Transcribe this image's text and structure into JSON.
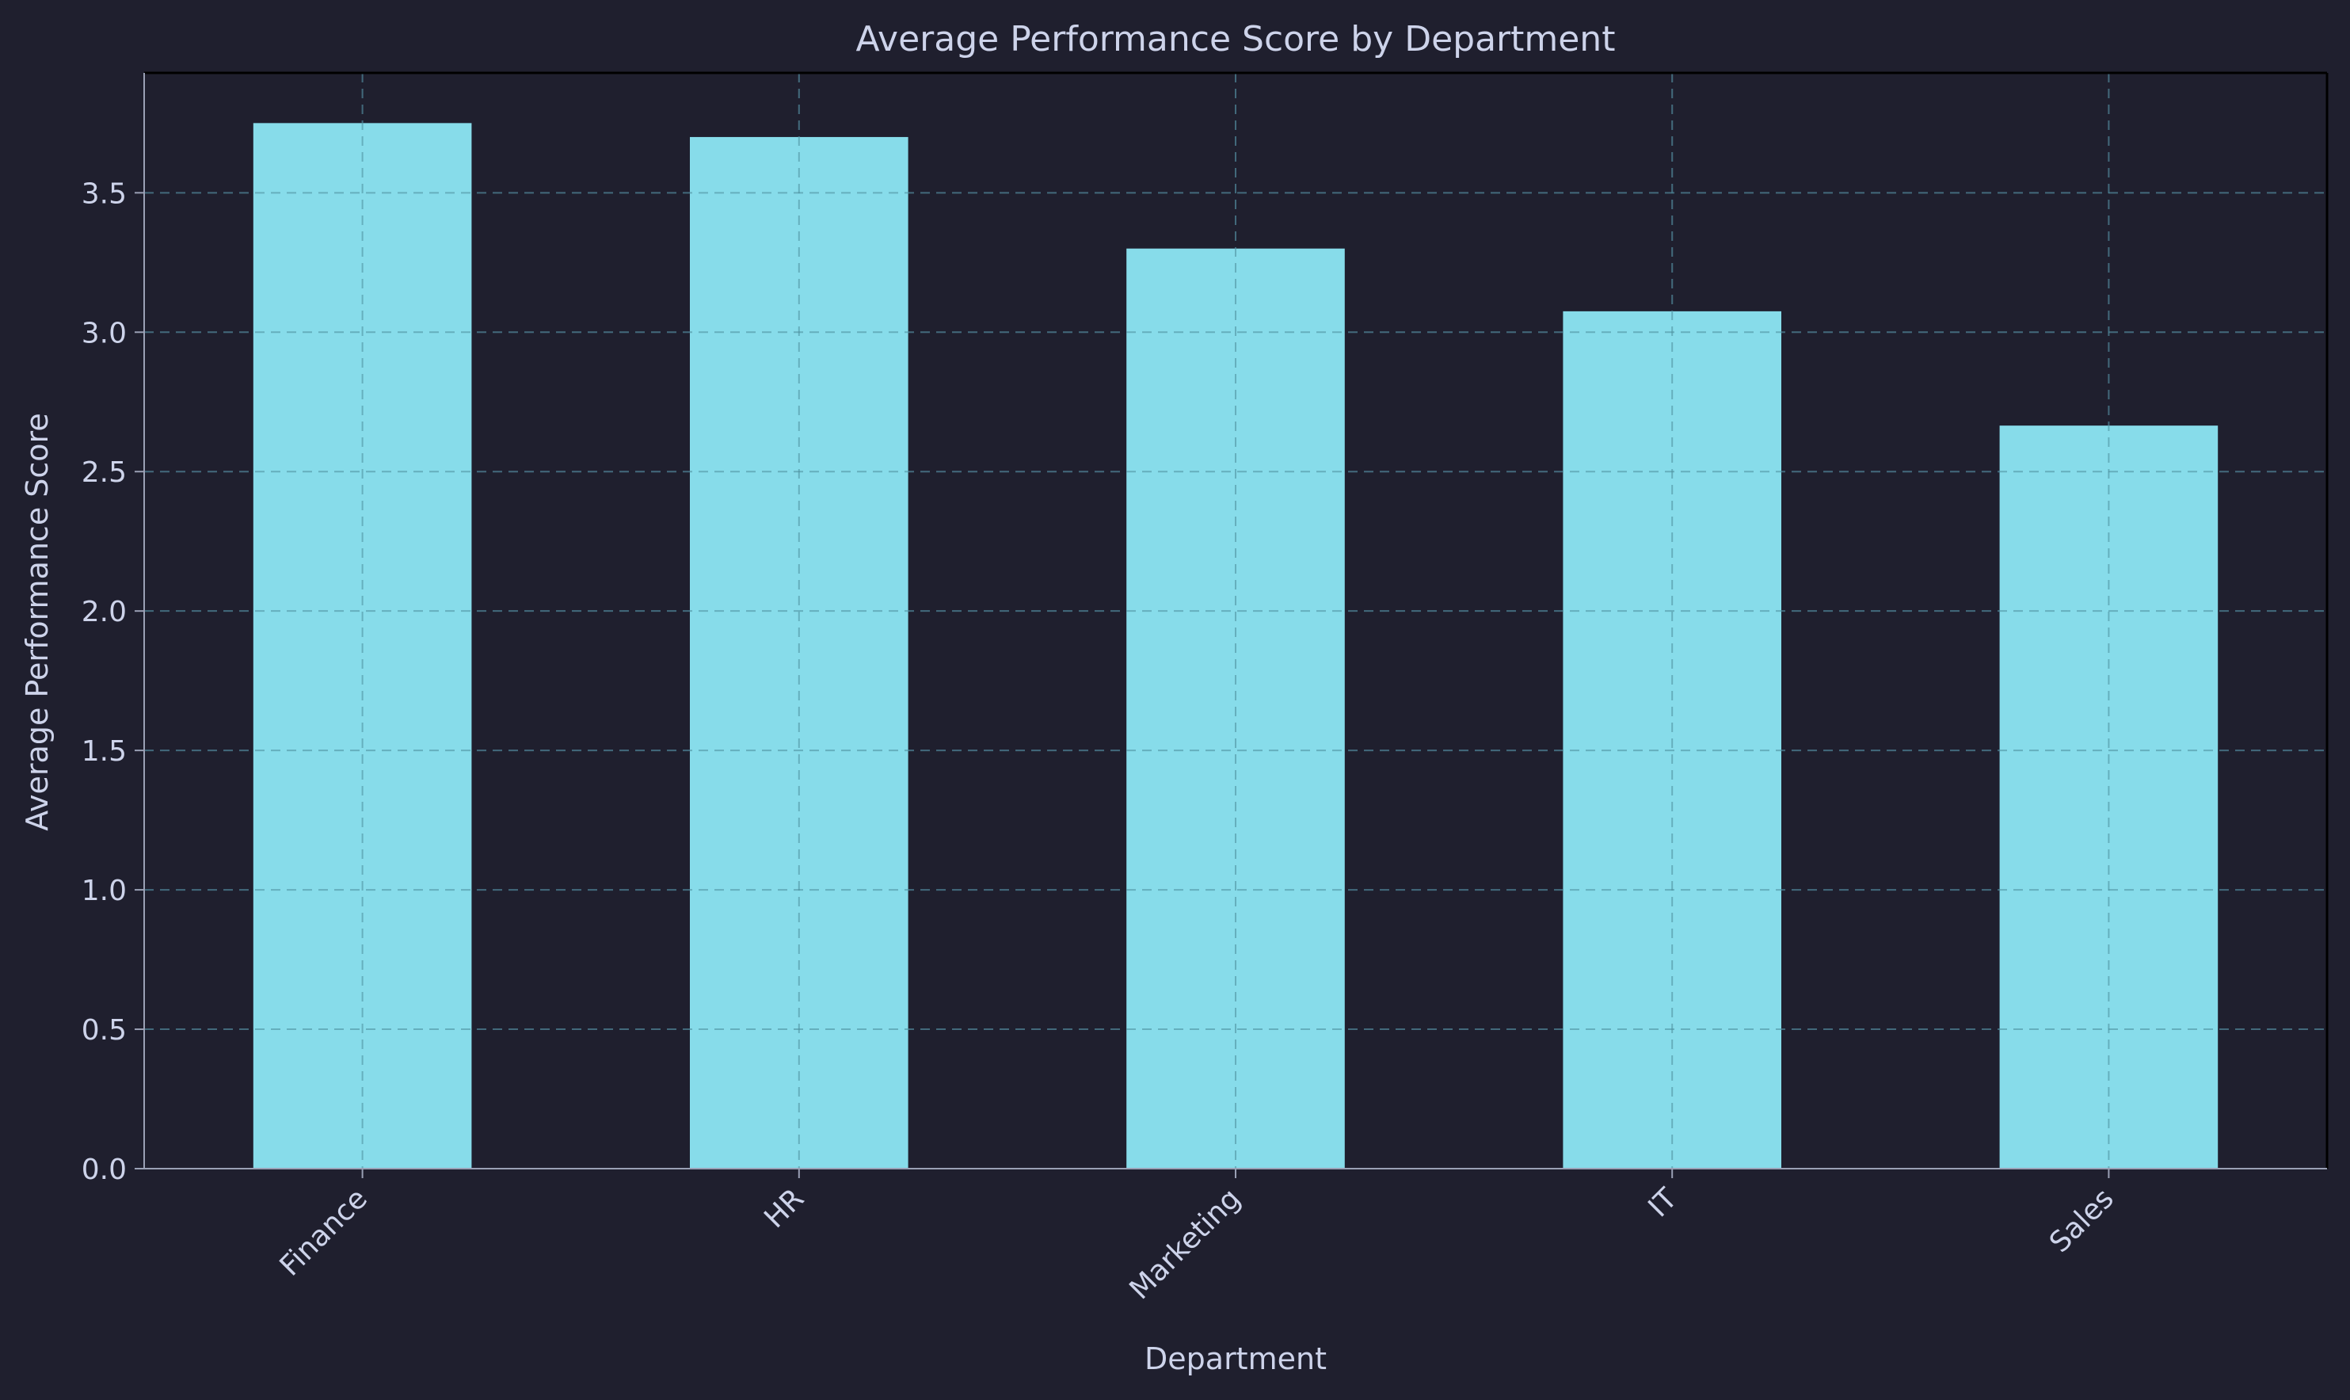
{
  "chart_data": {
    "type": "bar",
    "title": "Average Performance Score by Department",
    "xlabel": "Department",
    "ylabel": "Average Performance Score",
    "categories": [
      "Finance",
      "HR",
      "Marketing",
      "IT",
      "Sales"
    ],
    "values": [
      3.75,
      3.7,
      3.3,
      3.075,
      2.665
    ],
    "ylim": [
      0,
      3.93
    ],
    "yticks": [
      0.0,
      0.5,
      1.0,
      1.5,
      2.0,
      2.5,
      3.0,
      3.5
    ],
    "ytick_labels": [
      "0.0",
      "0.5",
      "1.0",
      "1.5",
      "2.0",
      "2.5",
      "3.0",
      "3.5"
    ],
    "grid": true,
    "colors": {
      "background": "#1f1f2e",
      "bar": "#87dcea",
      "text": "#cdd3ea"
    }
  }
}
